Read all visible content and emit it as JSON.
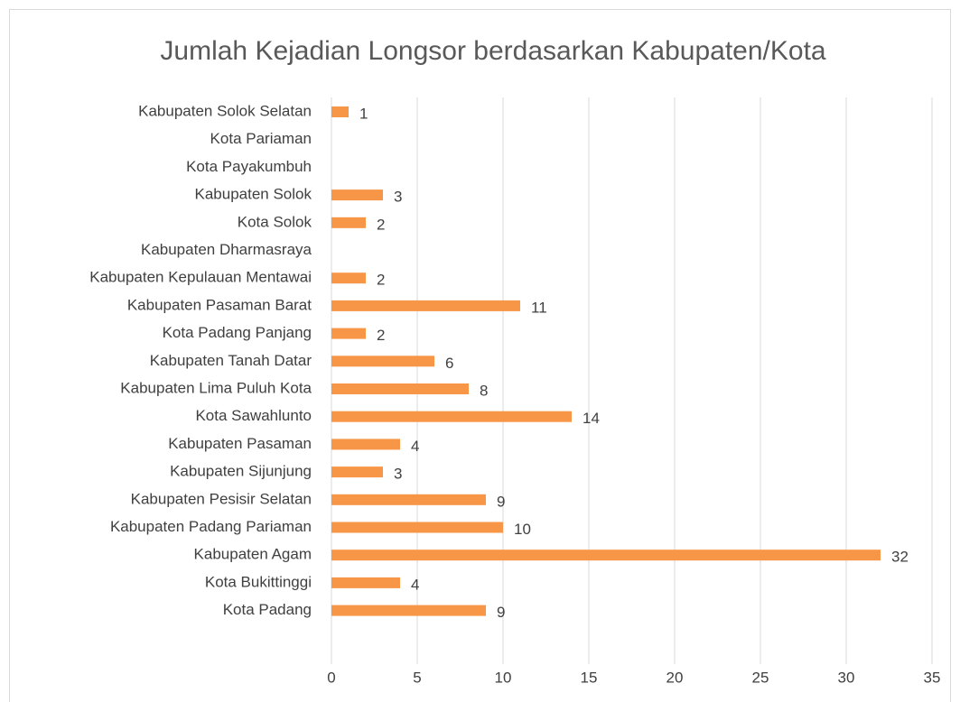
{
  "chart_data": {
    "type": "bar",
    "orientation": "horizontal",
    "title": "Jumlah Kejadian Longsor berdasarkan Kabupaten/Kota",
    "categories": [
      "Kabupaten Solok Selatan",
      "Kota Pariaman",
      "Kota Payakumbuh",
      "Kabupaten Solok",
      "Kota Solok",
      "Kabupaten Dharmasraya",
      "Kabupaten Kepulauan Mentawai",
      "Kabupaten Pasaman Barat",
      "Kota Padang Panjang",
      "Kabupaten Tanah Datar",
      "Kabupaten Lima Puluh Kota",
      "Kota Sawahlunto",
      "Kabupaten Pasaman",
      "Kabupaten Sijunjung",
      "Kabupaten Pesisir Selatan",
      "Kabupaten Padang Pariaman",
      "Kabupaten Agam",
      "Kota Bukittinggi",
      "Kota Padang"
    ],
    "values": [
      1,
      null,
      null,
      3,
      2,
      null,
      2,
      11,
      2,
      6,
      8,
      14,
      4,
      3,
      9,
      10,
      32,
      4,
      9
    ],
    "color": "#f79646",
    "xlim": [
      0,
      35
    ],
    "xticks": [
      0,
      5,
      10,
      15,
      20,
      25,
      30,
      35
    ],
    "grid": true
  }
}
